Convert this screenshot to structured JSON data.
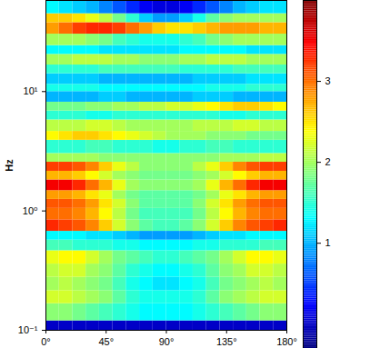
{
  "chart_data": {
    "type": "heatmap",
    "ylabel": "Hz",
    "log": "y",
    "xlim": [
      0,
      180
    ],
    "xticks": [
      {
        "value": 0,
        "label": "0°"
      },
      {
        "value": 45,
        "label": "45°"
      },
      {
        "value": 90,
        "label": "90°"
      },
      {
        "value": 135,
        "label": "135°"
      },
      {
        "value": 180,
        "label": "180°"
      }
    ],
    "ylim": [
      0.1,
      58
    ],
    "yticks": [
      {
        "value": 0.1,
        "label": "10⁻¹"
      },
      {
        "value": 1,
        "label": "10⁰"
      },
      {
        "value": 10,
        "label": "10¹"
      }
    ],
    "x_bins": [
      0,
      10,
      20,
      30,
      40,
      50,
      60,
      70,
      80,
      90,
      100,
      110,
      120,
      130,
      140,
      150,
      160,
      170,
      180
    ],
    "y_bins": [
      0.1,
      0.12,
      0.167,
      0.215,
      0.278,
      0.359,
      0.464,
      0.57,
      0.675,
      0.843,
      1.05,
      1.25,
      1.48,
      1.82,
      2.15,
      2.56,
      3.03,
      3.91,
      4.64,
      5.79,
      6.87,
      8.15,
      10,
      11.5,
      14.1,
      16.7,
      20.5,
      24.3,
      30.3,
      37.8,
      44.9,
      58
    ],
    "values": [
      [
        0.0,
        0.0,
        0.0,
        0.0,
        0.0,
        0.0,
        0.0,
        0.0,
        0.0,
        0.0,
        0.0,
        0.0,
        0.0,
        0.0,
        0.0,
        0.0,
        0.0,
        0.0
      ],
      [
        1.9,
        1.9,
        1.8,
        1.7,
        1.6,
        1.5,
        1.4,
        1.3,
        1.3,
        1.3,
        1.3,
        1.4,
        1.5,
        1.6,
        1.7,
        1.8,
        1.9,
        1.9
      ],
      [
        2.2,
        2.2,
        2.1,
        2.0,
        1.9,
        1.7,
        1.5,
        1.4,
        1.4,
        1.4,
        1.4,
        1.5,
        1.7,
        1.9,
        2.0,
        2.1,
        2.2,
        2.2
      ],
      [
        2.0,
        2.1,
        2.0,
        1.9,
        1.8,
        1.6,
        1.4,
        1.3,
        1.2,
        1.2,
        1.3,
        1.4,
        1.6,
        1.8,
        1.9,
        2.0,
        2.1,
        2.0
      ],
      [
        2.1,
        2.2,
        2.2,
        2.0,
        1.9,
        1.7,
        1.5,
        1.4,
        1.3,
        1.3,
        1.4,
        1.5,
        1.7,
        1.9,
        2.0,
        2.2,
        2.2,
        2.1
      ],
      [
        2.3,
        2.4,
        2.4,
        2.2,
        2.0,
        1.8,
        1.7,
        1.6,
        1.5,
        1.5,
        1.6,
        1.7,
        1.8,
        2.0,
        2.2,
        2.4,
        2.4,
        2.3
      ],
      [
        1.6,
        1.6,
        1.5,
        1.5,
        1.5,
        1.4,
        1.4,
        1.3,
        1.3,
        1.3,
        1.3,
        1.4,
        1.4,
        1.5,
        1.5,
        1.5,
        1.6,
        1.6
      ],
      [
        1.3,
        1.3,
        1.3,
        1.2,
        1.2,
        1.1,
        1.0,
        0.9,
        0.9,
        0.9,
        0.9,
        1.0,
        1.1,
        1.2,
        1.2,
        1.3,
        1.3,
        1.3
      ],
      [
        3.3,
        3.2,
        3.1,
        2.9,
        2.6,
        2.2,
        1.9,
        1.7,
        1.6,
        1.6,
        1.7,
        1.9,
        2.2,
        2.6,
        2.9,
        3.1,
        3.2,
        3.3
      ],
      [
        3.0,
        3.0,
        2.9,
        2.7,
        2.4,
        2.1,
        1.8,
        1.6,
        1.6,
        1.6,
        1.6,
        1.8,
        2.1,
        2.4,
        2.7,
        2.9,
        3.0,
        3.0
      ],
      [
        3.1,
        3.1,
        3.0,
        2.8,
        2.5,
        2.2,
        1.9,
        1.7,
        1.7,
        1.7,
        1.7,
        1.9,
        2.2,
        2.5,
        2.8,
        3.0,
        3.1,
        3.1
      ],
      [
        2.8,
        2.8,
        2.7,
        2.5,
        2.3,
        2.0,
        1.8,
        1.7,
        1.7,
        1.7,
        1.7,
        1.8,
        2.0,
        2.3,
        2.5,
        2.7,
        2.8,
        2.8
      ],
      [
        3.5,
        3.5,
        3.3,
        3.0,
        2.7,
        2.3,
        2.0,
        1.9,
        1.9,
        1.9,
        1.9,
        2.0,
        2.3,
        2.7,
        3.0,
        3.3,
        3.5,
        3.5
      ],
      [
        2.7,
        2.7,
        2.6,
        2.4,
        2.2,
        2.0,
        1.9,
        1.8,
        1.8,
        1.8,
        1.8,
        1.9,
        2.0,
        2.2,
        2.4,
        2.6,
        2.7,
        2.7
      ],
      [
        3.2,
        3.2,
        3.1,
        2.9,
        2.6,
        2.3,
        2.1,
        1.9,
        1.9,
        1.9,
        1.9,
        2.1,
        2.3,
        2.6,
        2.9,
        3.1,
        3.2,
        3.2
      ],
      [
        2.0,
        2.0,
        2.0,
        2.0,
        1.9,
        1.9,
        1.9,
        1.9,
        1.9,
        1.9,
        1.9,
        1.9,
        1.9,
        2.0,
        2.0,
        2.0,
        2.1,
        2.1
      ],
      [
        1.5,
        1.5,
        1.5,
        1.6,
        1.6,
        1.5,
        1.5,
        1.5,
        1.4,
        1.4,
        1.5,
        1.5,
        1.6,
        1.6,
        1.5,
        1.5,
        1.5,
        1.5
      ],
      [
        2.4,
        2.5,
        2.6,
        2.6,
        2.5,
        2.4,
        2.3,
        2.2,
        2.1,
        2.0,
        2.0,
        2.0,
        1.9,
        1.9,
        1.9,
        1.8,
        1.8,
        1.8
      ],
      [
        2.1,
        2.1,
        2.1,
        2.2,
        2.2,
        2.1,
        2.0,
        2.0,
        2.0,
        2.0,
        2.0,
        2.1,
        2.1,
        2.1,
        2.2,
        2.2,
        2.1,
        2.1
      ],
      [
        1.5,
        1.5,
        1.5,
        1.4,
        1.4,
        1.5,
        1.5,
        1.5,
        1.5,
        1.5,
        1.5,
        1.5,
        1.5,
        1.4,
        1.4,
        1.5,
        1.5,
        1.5
      ],
      [
        1.8,
        1.8,
        1.8,
        1.9,
        1.9,
        2.0,
        2.0,
        2.1,
        2.1,
        2.2,
        2.2,
        2.3,
        2.4,
        2.5,
        2.6,
        2.6,
        2.5,
        2.4
      ],
      [
        1.0,
        1.0,
        1.0,
        1.0,
        1.1,
        1.1,
        1.0,
        1.0,
        1.0,
        1.0,
        1.0,
        1.1,
        1.1,
        1.1,
        1.0,
        1.0,
        1.0,
        1.0
      ],
      [
        1.4,
        1.4,
        1.4,
        1.4,
        1.3,
        1.3,
        1.3,
        1.3,
        1.3,
        1.3,
        1.3,
        1.3,
        1.4,
        1.4,
        1.4,
        1.5,
        1.5,
        1.5
      ],
      [
        1.1,
        1.1,
        1.1,
        1.1,
        1.0,
        1.0,
        1.0,
        1.0,
        1.0,
        1.0,
        1.0,
        1.1,
        1.1,
        1.1,
        1.1,
        1.2,
        1.2,
        1.2
      ],
      [
        1.5,
        1.5,
        1.5,
        1.5,
        1.6,
        1.6,
        1.6,
        1.6,
        1.6,
        1.6,
        1.5,
        1.5,
        1.5,
        1.5,
        1.6,
        1.6,
        1.6,
        1.6
      ],
      [
        2.0,
        2.0,
        2.1,
        2.1,
        2.1,
        2.0,
        2.0,
        1.9,
        1.9,
        1.9,
        2.0,
        2.0,
        2.1,
        2.1,
        2.1,
        2.0,
        2.0,
        2.0
      ],
      [
        1.3,
        1.3,
        1.3,
        1.3,
        1.2,
        1.2,
        1.2,
        1.2,
        1.2,
        1.2,
        1.3,
        1.3,
        1.3,
        1.3,
        1.3,
        1.2,
        1.2,
        1.2
      ],
      [
        2.0,
        2.0,
        2.0,
        1.9,
        1.8,
        1.6,
        1.5,
        1.4,
        1.4,
        1.4,
        1.5,
        1.6,
        1.8,
        1.9,
        2.0,
        2.0,
        2.0,
        2.0
      ],
      [
        2.8,
        3.0,
        3.2,
        3.3,
        3.3,
        3.2,
        3.0,
        2.8,
        2.6,
        2.5,
        2.5,
        2.6,
        2.7,
        2.8,
        2.8,
        2.8,
        2.7,
        2.7
      ],
      [
        2.6,
        2.6,
        2.5,
        2.3,
        2.1,
        1.8,
        1.5,
        1.1,
        0.9,
        0.9,
        1.1,
        1.4,
        1.7,
        1.9,
        2.0,
        2.0,
        2.0,
        2.0
      ],
      [
        1.3,
        1.2,
        1.1,
        1.0,
        0.8,
        0.6,
        0.4,
        0.2,
        0.1,
        0.1,
        0.2,
        0.4,
        0.6,
        0.8,
        1.0,
        1.1,
        1.2,
        1.2
      ]
    ],
    "colorbar": {
      "lim": [
        -0.3,
        4.0
      ],
      "ticks": [
        1,
        2,
        3
      ]
    }
  }
}
